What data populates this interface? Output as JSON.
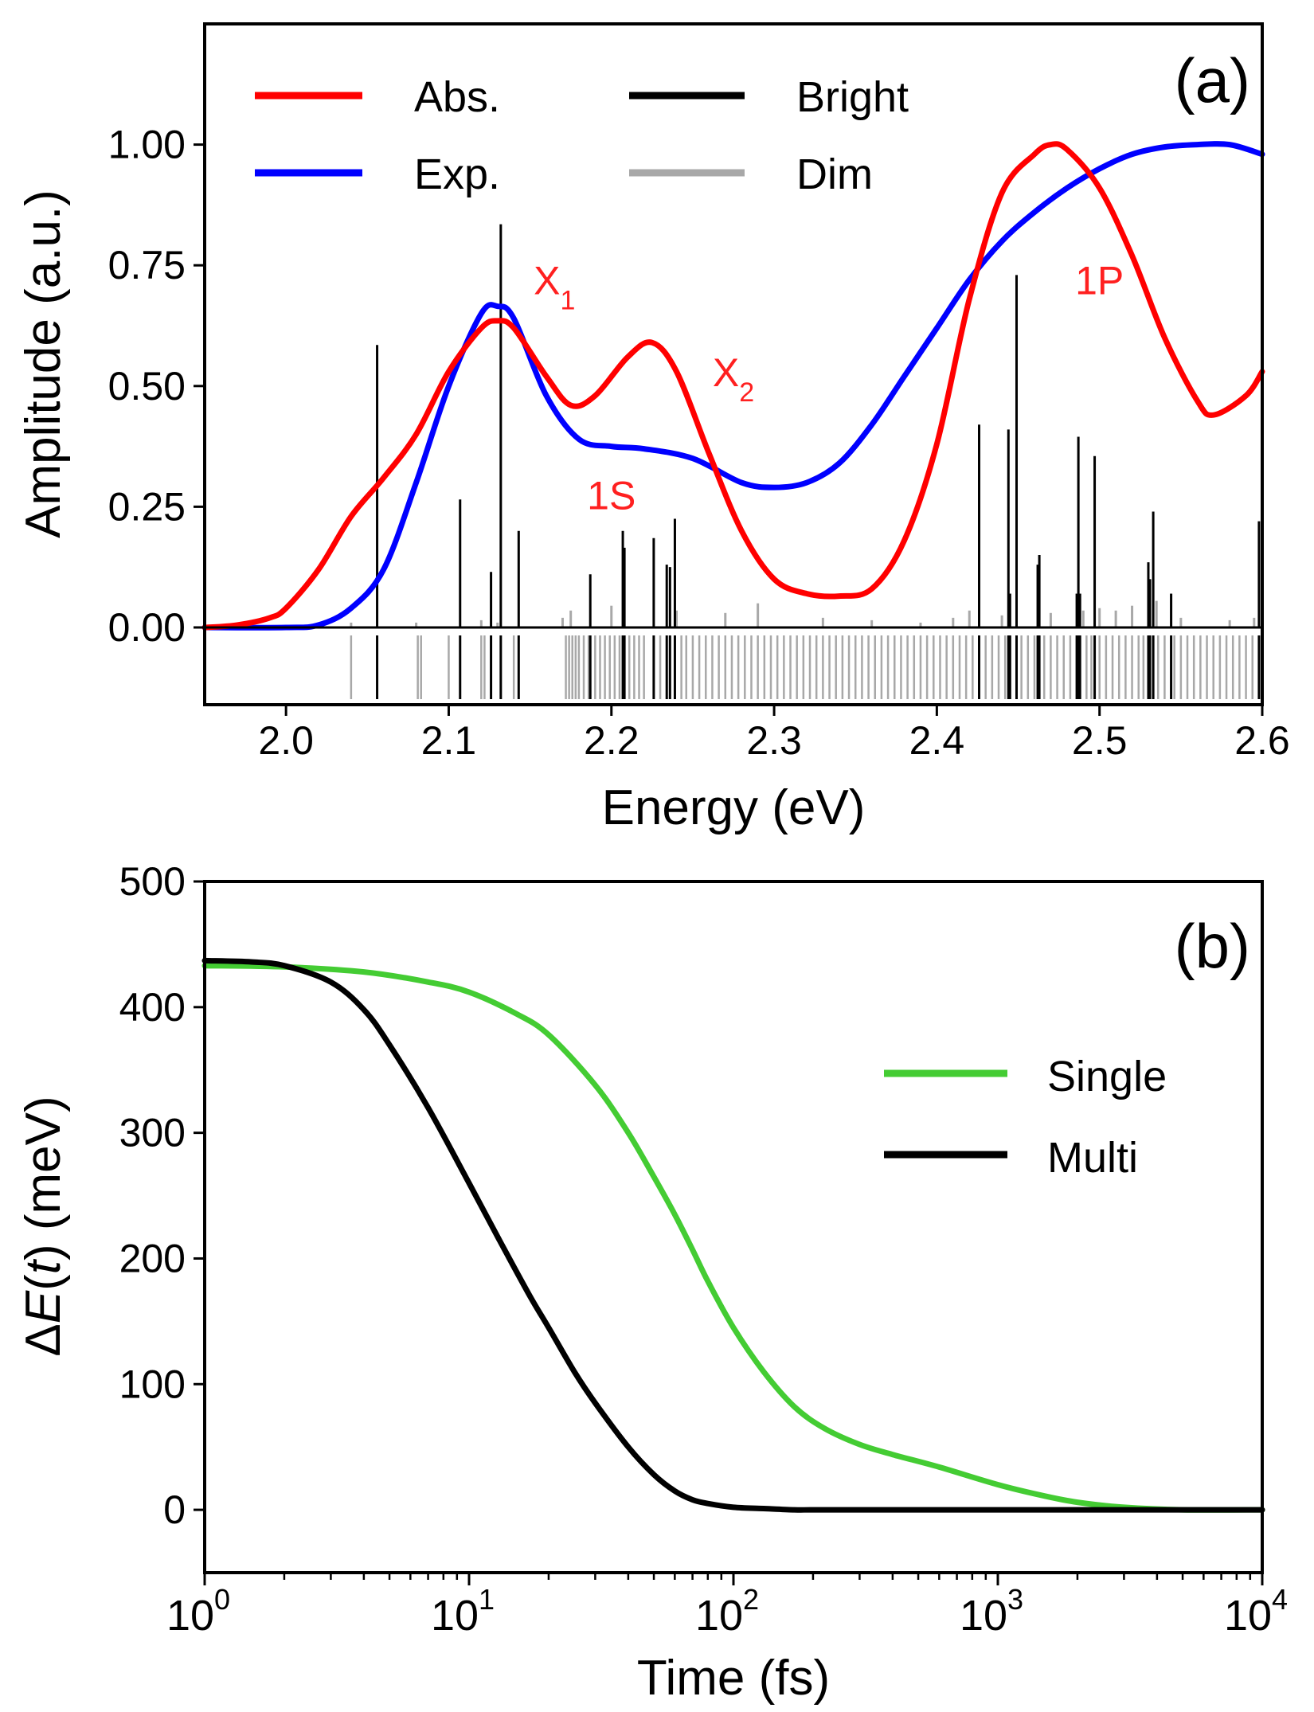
{
  "chart_data": [
    {
      "type": "line",
      "panel_label": "(a)",
      "xlabel": "Energy (eV)",
      "ylabel": "Amplitude (a.u.)",
      "xlim": [
        1.95,
        2.6
      ],
      "ylim": [
        -0.16,
        1.25
      ],
      "xticks": [
        2.0,
        2.1,
        2.2,
        2.3,
        2.4,
        2.5,
        2.6
      ],
      "xtick_labels": [
        "2.0",
        "2.1",
        "2.2",
        "2.3",
        "2.4",
        "2.5",
        "2.6"
      ],
      "yticks": [
        0.0,
        0.25,
        0.5,
        0.75,
        1.0
      ],
      "ytick_labels": [
        "0.00",
        "0.25",
        "0.50",
        "0.75",
        "1.00"
      ],
      "legend_position": "top-left",
      "series": [
        {
          "name": "Abs.",
          "color": "#ff0000",
          "x": [
            1.95,
            1.97,
            1.99,
            2.0,
            2.02,
            2.04,
            2.06,
            2.08,
            2.1,
            2.12,
            2.13,
            2.14,
            2.16,
            2.175,
            2.19,
            2.21,
            2.225,
            2.24,
            2.26,
            2.28,
            2.3,
            2.32,
            2.34,
            2.36,
            2.38,
            2.4,
            2.42,
            2.44,
            2.46,
            2.47,
            2.48,
            2.5,
            2.52,
            2.54,
            2.56,
            2.57,
            2.59,
            2.6
          ],
          "y": [
            0.0,
            0.005,
            0.02,
            0.04,
            0.12,
            0.23,
            0.31,
            0.4,
            0.53,
            0.62,
            0.635,
            0.62,
            0.52,
            0.46,
            0.48,
            0.56,
            0.59,
            0.53,
            0.36,
            0.2,
            0.1,
            0.07,
            0.065,
            0.08,
            0.18,
            0.38,
            0.68,
            0.9,
            0.98,
            1.0,
            0.99,
            0.91,
            0.77,
            0.6,
            0.47,
            0.44,
            0.48,
            0.53
          ]
        },
        {
          "name": "Exp.",
          "color": "#0000ff",
          "x": [
            1.95,
            2.0,
            2.02,
            2.04,
            2.06,
            2.08,
            2.1,
            2.12,
            2.13,
            2.14,
            2.16,
            2.18,
            2.2,
            2.22,
            2.25,
            2.28,
            2.3,
            2.32,
            2.34,
            2.36,
            2.38,
            2.4,
            2.42,
            2.44,
            2.46,
            2.48,
            2.5,
            2.52,
            2.54,
            2.56,
            2.58,
            2.6
          ],
          "y": [
            0.0,
            0.0,
            0.005,
            0.04,
            0.12,
            0.3,
            0.5,
            0.65,
            0.665,
            0.64,
            0.48,
            0.39,
            0.375,
            0.37,
            0.35,
            0.3,
            0.29,
            0.3,
            0.34,
            0.42,
            0.52,
            0.62,
            0.72,
            0.8,
            0.86,
            0.91,
            0.95,
            0.98,
            0.995,
            1.0,
            1.0,
            0.98
          ]
        },
        {
          "name": "Bright",
          "color": "#000000",
          "style": "sticks",
          "x": [
            2.056,
            2.107,
            2.126,
            2.132,
            2.143,
            2.187,
            2.207,
            2.208,
            2.226,
            2.234,
            2.236,
            2.239,
            2.426,
            2.444,
            2.445,
            2.449,
            2.462,
            2.463,
            2.486,
            2.487,
            2.488,
            2.497,
            2.53,
            2.531,
            2.533,
            2.544,
            2.598
          ],
          "y": [
            0.585,
            0.265,
            0.115,
            0.835,
            0.2,
            0.11,
            0.2,
            0.165,
            0.185,
            0.13,
            0.125,
            0.225,
            0.42,
            0.41,
            0.07,
            0.73,
            0.13,
            0.15,
            0.07,
            0.395,
            0.07,
            0.355,
            0.135,
            0.1,
            0.24,
            0.07,
            0.22
          ]
        },
        {
          "name": "Dim",
          "color": "#a8a8a8",
          "style": "sticks",
          "x": [
            2.04,
            2.08,
            2.12,
            2.13,
            2.17,
            2.175,
            2.2,
            2.24,
            2.27,
            2.29,
            2.33,
            2.36,
            2.39,
            2.41,
            2.42,
            2.44,
            2.47,
            2.49,
            2.5,
            2.51,
            2.52,
            2.535,
            2.55,
            2.58,
            2.595
          ],
          "y": [
            0.01,
            0.01,
            0.015,
            0.01,
            0.02,
            0.035,
            0.045,
            0.035,
            0.03,
            0.05,
            0.02,
            0.015,
            0.01,
            0.02,
            0.035,
            0.025,
            0.03,
            0.035,
            0.04,
            0.035,
            0.045,
            0.055,
            0.02,
            0.015,
            0.02
          ]
        }
      ],
      "lower_strip_dim_x": [
        2.04,
        2.081,
        2.083,
        2.1,
        2.12,
        2.122,
        2.14,
        2.172,
        2.174,
        2.176,
        2.178,
        2.18,
        2.183,
        2.186,
        2.19,
        2.193,
        2.196,
        2.199,
        2.202,
        2.205,
        2.211,
        2.214,
        2.217,
        2.22,
        2.23,
        2.243,
        2.246,
        2.25,
        2.254,
        2.258,
        2.262,
        2.266,
        2.27,
        2.274,
        2.278,
        2.282,
        2.286,
        2.29,
        2.294,
        2.298,
        2.302,
        2.306,
        2.31,
        2.314,
        2.318,
        2.322,
        2.326,
        2.33,
        2.334,
        2.338,
        2.342,
        2.346,
        2.35,
        2.354,
        2.358,
        2.362,
        2.366,
        2.37,
        2.374,
        2.378,
        2.382,
        2.386,
        2.39,
        2.394,
        2.398,
        2.402,
        2.406,
        2.41,
        2.414,
        2.418,
        2.422,
        2.43,
        2.434,
        2.438,
        2.442,
        2.452,
        2.456,
        2.46,
        2.466,
        2.47,
        2.474,
        2.478,
        2.482,
        2.492,
        2.495,
        2.5,
        2.504,
        2.508,
        2.512,
        2.516,
        2.52,
        2.524,
        2.527,
        2.536,
        2.54,
        2.546,
        2.55,
        2.554,
        2.558,
        2.562,
        2.566,
        2.57,
        2.574,
        2.578,
        2.582,
        2.586,
        2.59,
        2.594
      ],
      "annotations": [
        {
          "text": "X",
          "sub": "1",
          "x": 2.165,
          "y": 0.69,
          "color": "#ff2020"
        },
        {
          "text": "X",
          "sub": "2",
          "x": 2.275,
          "y": 0.5,
          "color": "#ff2020"
        },
        {
          "text": "1S",
          "x": 2.2,
          "y": 0.245,
          "color": "#ff2020"
        },
        {
          "text": "1P",
          "x": 2.5,
          "y": 0.69,
          "color": "#ff2020"
        }
      ]
    },
    {
      "type": "line",
      "panel_label": "(b)",
      "xscale": "log",
      "xlabel": "Time (fs)",
      "ylabel_parts": [
        "Δ",
        "E",
        "(",
        "t",
        ") (meV)"
      ],
      "xlim": [
        1,
        10000
      ],
      "ylim": [
        -50,
        500
      ],
      "xtick_base": "10",
      "xtick_exponents": [
        "0",
        "1",
        "2",
        "3",
        "4"
      ],
      "yticks": [
        0,
        100,
        200,
        300,
        400,
        500
      ],
      "ytick_labels": [
        "0",
        "100",
        "200",
        "300",
        "400",
        "500"
      ],
      "legend_position": "center-right",
      "series": [
        {
          "name": "Single",
          "color": "#44cc33",
          "x": [
            1,
            2,
            4,
            7,
            10,
            15,
            20,
            30,
            40,
            50,
            60,
            70,
            80,
            100,
            130,
            170,
            220,
            300,
            400,
            600,
            1000,
            1500,
            2000,
            3000,
            5000,
            10000
          ],
          "y": [
            433,
            432,
            428,
            420,
            412,
            395,
            378,
            338,
            300,
            265,
            235,
            207,
            182,
            145,
            110,
            82,
            65,
            52,
            44,
            34,
            20,
            11,
            6,
            2,
            0,
            0
          ]
        },
        {
          "name": "Multi",
          "color": "#000000",
          "x": [
            1,
            1.5,
            2,
            3,
            4,
            5,
            7,
            10,
            13,
            17,
            20,
            25,
            30,
            40,
            50,
            60,
            70,
            80,
            100,
            130,
            170,
            200,
            300,
            1000,
            10000
          ],
          "y": [
            437,
            436,
            433,
            420,
            398,
            370,
            320,
            260,
            215,
            170,
            145,
            110,
            85,
            50,
            28,
            15,
            8,
            5,
            2,
            1,
            0,
            0,
            0,
            0,
            0
          ]
        }
      ]
    }
  ]
}
